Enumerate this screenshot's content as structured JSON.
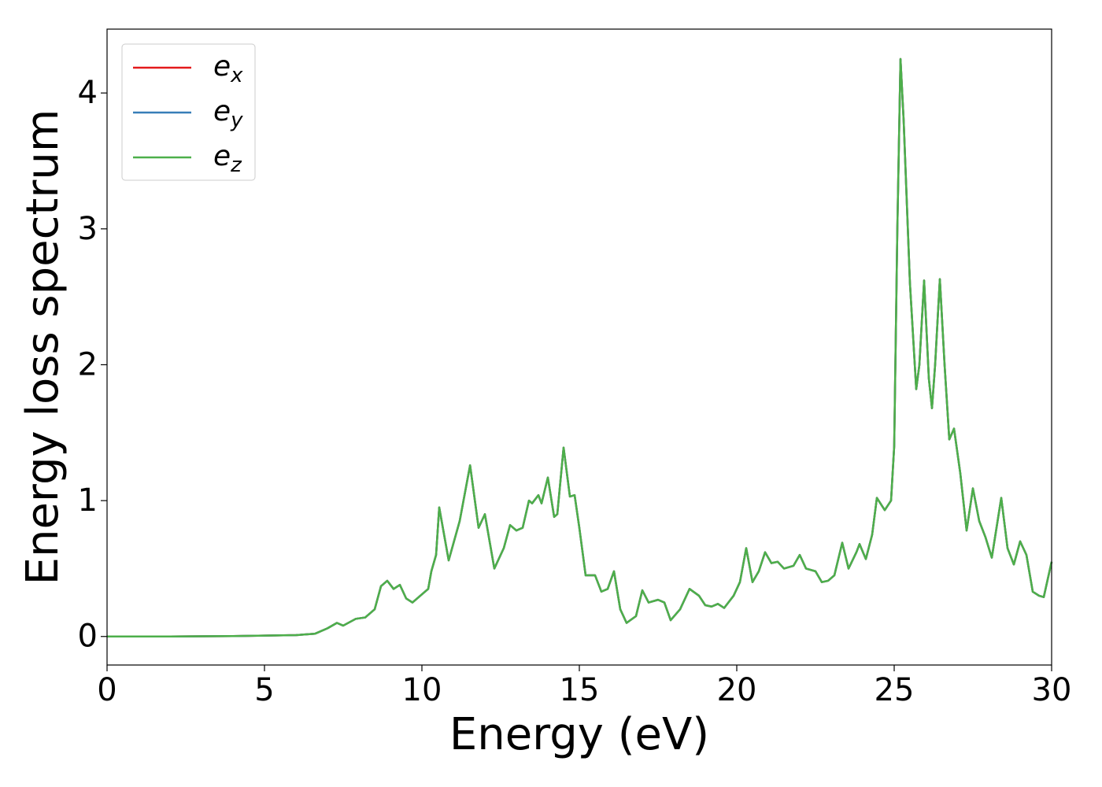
{
  "chart_data": {
    "type": "line",
    "xlabel": "Energy (eV)",
    "ylabel": "Energy loss spectrum",
    "xlim": [
      0,
      30
    ],
    "ylim": [
      -0.21,
      4.47
    ],
    "xticks": [
      0,
      5,
      10,
      15,
      20,
      25,
      30
    ],
    "yticks": [
      0,
      1,
      2,
      3,
      4
    ],
    "legend": "upper left",
    "x": [
      0,
      2,
      4,
      6,
      6.6,
      7.0,
      7.3,
      7.5,
      7.9,
      8.2,
      8.5,
      8.7,
      8.9,
      9.1,
      9.3,
      9.5,
      9.7,
      10.0,
      10.2,
      10.3,
      10.45,
      10.55,
      10.85,
      11.2,
      11.53,
      11.8,
      12.0,
      12.3,
      12.6,
      12.8,
      13.0,
      13.2,
      13.4,
      13.5,
      13.7,
      13.8,
      14.0,
      14.2,
      14.3,
      14.5,
      14.7,
      14.85,
      15.0,
      15.2,
      15.5,
      15.7,
      15.9,
      16.1,
      16.3,
      16.5,
      16.8,
      17.0,
      17.2,
      17.5,
      17.7,
      17.9,
      18.2,
      18.5,
      18.8,
      19.0,
      19.2,
      19.4,
      19.6,
      19.9,
      20.1,
      20.3,
      20.5,
      20.7,
      20.9,
      21.1,
      21.3,
      21.5,
      21.8,
      22.0,
      22.2,
      22.5,
      22.7,
      22.9,
      23.1,
      23.35,
      23.55,
      23.8,
      23.9,
      24.1,
      24.3,
      24.45,
      24.7,
      24.9,
      25.0,
      25.1,
      25.2,
      25.3,
      25.5,
      25.7,
      25.8,
      25.95,
      26.1,
      26.2,
      26.3,
      26.45,
      26.6,
      26.75,
      26.9,
      27.1,
      27.3,
      27.5,
      27.7,
      27.9,
      28.1,
      28.4,
      28.6,
      28.8,
      29.0,
      29.2,
      29.4,
      29.6,
      29.75,
      30.0
    ],
    "series": [
      {
        "name": "e",
        "subscript": "x",
        "color": "#e41a1c",
        "values": [
          0,
          0,
          0.003,
          0.01,
          0.02,
          0.06,
          0.1,
          0.08,
          0.13,
          0.14,
          0.2,
          0.37,
          0.41,
          0.35,
          0.38,
          0.28,
          0.25,
          0.31,
          0.35,
          0.48,
          0.6,
          0.95,
          0.56,
          0.85,
          1.26,
          0.8,
          0.9,
          0.5,
          0.65,
          0.82,
          0.78,
          0.8,
          1.0,
          0.98,
          1.04,
          0.98,
          1.17,
          0.88,
          0.9,
          1.39,
          1.03,
          1.04,
          0.8,
          0.45,
          0.45,
          0.33,
          0.35,
          0.48,
          0.2,
          0.1,
          0.15,
          0.34,
          0.25,
          0.27,
          0.25,
          0.12,
          0.2,
          0.35,
          0.3,
          0.23,
          0.22,
          0.24,
          0.21,
          0.3,
          0.4,
          0.65,
          0.4,
          0.48,
          0.62,
          0.54,
          0.55,
          0.5,
          0.52,
          0.6,
          0.5,
          0.48,
          0.4,
          0.41,
          0.45,
          0.69,
          0.5,
          0.62,
          0.68,
          0.57,
          0.75,
          1.02,
          0.93,
          1.0,
          1.4,
          3.0,
          4.25,
          3.8,
          2.6,
          1.82,
          2.0,
          2.62,
          1.9,
          1.68,
          2.0,
          2.63,
          2.0,
          1.45,
          1.53,
          1.2,
          0.78,
          1.09,
          0.85,
          0.73,
          0.58,
          1.02,
          0.65,
          0.53,
          0.7,
          0.6,
          0.33,
          0.3,
          0.29,
          0.55
        ]
      },
      {
        "name": "e",
        "subscript": "y",
        "color": "#377eb8",
        "values": [
          0,
          0,
          0.003,
          0.01,
          0.02,
          0.06,
          0.1,
          0.08,
          0.13,
          0.14,
          0.2,
          0.37,
          0.41,
          0.35,
          0.38,
          0.28,
          0.25,
          0.31,
          0.35,
          0.48,
          0.6,
          0.95,
          0.56,
          0.85,
          1.26,
          0.8,
          0.9,
          0.5,
          0.65,
          0.82,
          0.78,
          0.8,
          1.0,
          0.98,
          1.04,
          0.98,
          1.17,
          0.88,
          0.9,
          1.39,
          1.03,
          1.04,
          0.8,
          0.45,
          0.45,
          0.33,
          0.35,
          0.48,
          0.2,
          0.1,
          0.15,
          0.34,
          0.25,
          0.27,
          0.25,
          0.12,
          0.2,
          0.35,
          0.3,
          0.23,
          0.22,
          0.24,
          0.21,
          0.3,
          0.4,
          0.65,
          0.4,
          0.48,
          0.62,
          0.54,
          0.55,
          0.5,
          0.52,
          0.6,
          0.5,
          0.48,
          0.4,
          0.41,
          0.45,
          0.69,
          0.5,
          0.62,
          0.68,
          0.57,
          0.75,
          1.02,
          0.93,
          1.0,
          1.4,
          3.0,
          4.25,
          3.8,
          2.6,
          1.82,
          2.0,
          2.62,
          1.9,
          1.68,
          2.0,
          2.63,
          2.0,
          1.45,
          1.53,
          1.2,
          0.78,
          1.09,
          0.85,
          0.73,
          0.58,
          1.02,
          0.65,
          0.53,
          0.7,
          0.6,
          0.33,
          0.3,
          0.29,
          0.55
        ]
      },
      {
        "name": "e",
        "subscript": "z",
        "color": "#4daf4a",
        "values": [
          0,
          0,
          0.003,
          0.01,
          0.02,
          0.06,
          0.1,
          0.08,
          0.13,
          0.14,
          0.2,
          0.37,
          0.41,
          0.35,
          0.38,
          0.28,
          0.25,
          0.31,
          0.35,
          0.48,
          0.6,
          0.95,
          0.56,
          0.85,
          1.26,
          0.8,
          0.9,
          0.5,
          0.65,
          0.82,
          0.78,
          0.8,
          1.0,
          0.98,
          1.04,
          0.98,
          1.17,
          0.88,
          0.9,
          1.39,
          1.03,
          1.04,
          0.8,
          0.45,
          0.45,
          0.33,
          0.35,
          0.48,
          0.2,
          0.1,
          0.15,
          0.34,
          0.25,
          0.27,
          0.25,
          0.12,
          0.2,
          0.35,
          0.3,
          0.23,
          0.22,
          0.24,
          0.21,
          0.3,
          0.4,
          0.65,
          0.4,
          0.48,
          0.62,
          0.54,
          0.55,
          0.5,
          0.52,
          0.6,
          0.5,
          0.48,
          0.4,
          0.41,
          0.45,
          0.69,
          0.5,
          0.62,
          0.68,
          0.57,
          0.75,
          1.02,
          0.93,
          1.0,
          1.4,
          3.0,
          4.25,
          3.8,
          2.6,
          1.82,
          2.0,
          2.62,
          1.9,
          1.68,
          2.0,
          2.63,
          2.0,
          1.45,
          1.53,
          1.2,
          0.78,
          1.09,
          0.85,
          0.73,
          0.58,
          1.02,
          0.65,
          0.53,
          0.7,
          0.6,
          0.33,
          0.3,
          0.29,
          0.55
        ]
      }
    ]
  }
}
